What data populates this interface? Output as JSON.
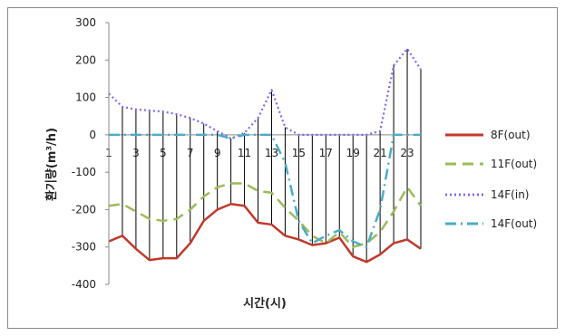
{
  "chart_data": {
    "type": "line",
    "title": "",
    "xlabel": "시간(시)",
    "ylabel": "환기량(m³/h)",
    "ylim": [
      -400,
      300
    ],
    "yticks": [
      300,
      200,
      100,
      0,
      -100,
      -200,
      -300,
      -400
    ],
    "x": [
      1,
      2,
      3,
      4,
      5,
      6,
      7,
      8,
      9,
      10,
      11,
      12,
      13,
      14,
      15,
      16,
      17,
      18,
      19,
      20,
      21,
      22,
      23,
      24
    ],
    "xtick_labels": [
      "1",
      "3",
      "5",
      "7",
      "9",
      "11",
      "13",
      "15",
      "17",
      "19",
      "21",
      "23"
    ],
    "xtick_values": [
      1,
      3,
      5,
      7,
      9,
      11,
      13,
      15,
      17,
      19,
      21,
      23
    ],
    "legend_position": "right",
    "grid": false,
    "drop_lines": true,
    "series": [
      {
        "name": "8F(out)",
        "color": "#c0392b",
        "style": "solid",
        "values": [
          -285,
          -270,
          -305,
          -335,
          -330,
          -330,
          -290,
          -230,
          -200,
          -185,
          -190,
          -235,
          -240,
          -270,
          -280,
          -295,
          -290,
          -275,
          -325,
          -340,
          -320,
          -290,
          -280,
          -305
        ]
      },
      {
        "name": "11F(out)",
        "color": "#9bbb59",
        "style": "dashed",
        "values": [
          -190,
          -185,
          -205,
          -225,
          -230,
          -225,
          -200,
          -165,
          -140,
          -130,
          -130,
          -150,
          -155,
          -195,
          -230,
          -270,
          -290,
          -260,
          -300,
          -290,
          -260,
          -205,
          -140,
          -190
        ]
      },
      {
        "name": "14F(in)",
        "color": "#7b68ee",
        "style": "dotted",
        "values": [
          110,
          75,
          68,
          65,
          62,
          55,
          45,
          30,
          10,
          -10,
          5,
          45,
          120,
          20,
          0,
          0,
          0,
          0,
          0,
          0,
          10,
          185,
          230,
          175
        ]
      },
      {
        "name": "14F(out)",
        "color": "#4bacc6",
        "style": "dashdot",
        "values": [
          0,
          0,
          0,
          0,
          0,
          0,
          0,
          0,
          0,
          -10,
          0,
          0,
          0,
          -75,
          -230,
          -290,
          -270,
          -255,
          -285,
          -300,
          -200,
          0,
          0,
          0
        ]
      }
    ]
  }
}
